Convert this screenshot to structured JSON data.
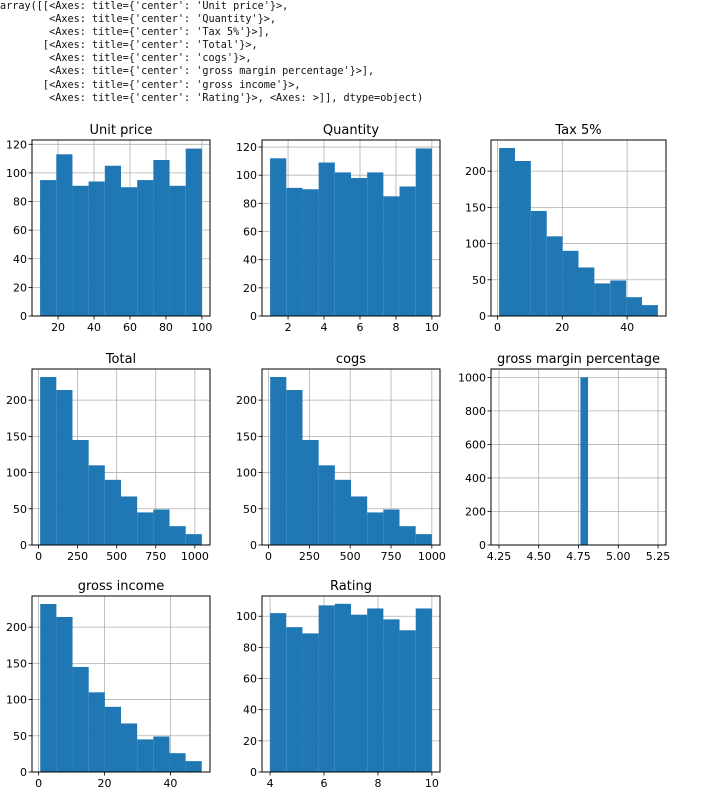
{
  "output_lines": [
    "array([[<Axes: title={'center': 'Unit price'}>,",
    "        <Axes: title={'center': 'Quantity'}>,",
    "        <Axes: title={'center': 'Tax 5%'}>],",
    "       [<Axes: title={'center': 'Total'}>,",
    "        <Axes: title={'center': 'cogs'}>,",
    "        <Axes: title={'center': 'gross margin percentage'}>],",
    "       [<Axes: title={'center': 'gross income'}>,",
    "        <Axes: title={'center': 'Rating'}>, <Axes: >]], dtype=object)"
  ],
  "colors": {
    "bar": "#1f77b4",
    "grid": "#b0b0b0",
    "axis": "#000000"
  },
  "chart_data": [
    {
      "type": "bar",
      "title": "Unit price",
      "grid": true,
      "bin_edges": [
        10,
        19,
        28,
        37,
        46,
        55,
        64,
        73,
        82,
        91,
        100
      ],
      "values": [
        95,
        113,
        91,
        94,
        105,
        90,
        95,
        109,
        91,
        117
      ],
      "xlim": [
        5.5,
        104.5
      ],
      "ylim": [
        0,
        123
      ],
      "xticks": [
        20,
        40,
        60,
        80,
        100
      ],
      "yticks": [
        0,
        20,
        40,
        60,
        80,
        100,
        120
      ]
    },
    {
      "type": "bar",
      "title": "Quantity",
      "grid": true,
      "bin_edges": [
        1,
        1.9,
        2.8,
        3.7,
        4.6,
        5.5,
        6.4,
        7.3,
        8.2,
        9.1,
        10
      ],
      "values": [
        112,
        91,
        90,
        109,
        102,
        98,
        102,
        85,
        92,
        119
      ],
      "xlim": [
        0.55,
        10.45
      ],
      "ylim": [
        0,
        125
      ],
      "xticks": [
        2,
        4,
        6,
        8,
        10
      ],
      "yticks": [
        0,
        20,
        40,
        60,
        80,
        100,
        120
      ]
    },
    {
      "type": "bar",
      "title": "Tax 5%",
      "grid": true,
      "bin_edges": [
        0.5,
        5.4,
        10.3,
        15.2,
        20.1,
        25,
        29.9,
        34.8,
        39.7,
        44.6,
        49.5
      ],
      "values": [
        232,
        214,
        145,
        110,
        90,
        67,
        45,
        49,
        26,
        15
      ],
      "xlim": [
        -2,
        52
      ],
      "ylim": [
        0,
        243
      ],
      "xticks": [
        0,
        20,
        40
      ],
      "yticks": [
        0,
        50,
        100,
        150,
        200
      ]
    },
    {
      "type": "bar",
      "title": "Total",
      "grid": true,
      "bin_edges": [
        10,
        113.5,
        217,
        320.5,
        424,
        527.5,
        631,
        734.5,
        838,
        941.5,
        1045
      ],
      "values": [
        232,
        214,
        145,
        110,
        90,
        67,
        45,
        49,
        26,
        15
      ],
      "xlim": [
        -42,
        1097
      ],
      "ylim": [
        0,
        243
      ],
      "xticks": [
        0,
        250,
        500,
        750,
        1000
      ],
      "yticks": [
        0,
        50,
        100,
        150,
        200
      ]
    },
    {
      "type": "bar",
      "title": "cogs",
      "grid": true,
      "bin_edges": [
        10,
        109,
        208,
        307,
        406,
        505,
        604,
        703,
        802,
        901,
        1000
      ],
      "values": [
        232,
        214,
        145,
        110,
        90,
        67,
        45,
        49,
        26,
        15
      ],
      "xlim": [
        -40,
        1050
      ],
      "ylim": [
        0,
        243
      ],
      "xticks": [
        0,
        250,
        500,
        750,
        1000
      ],
      "yticks": [
        0,
        50,
        100,
        150,
        200
      ]
    },
    {
      "type": "bar",
      "title": "gross margin percentage",
      "grid": true,
      "bin_edges": [
        4.762,
        4.81,
        4.858
      ],
      "values": [
        1000,
        0
      ],
      "xlim": [
        4.2,
        5.3
      ],
      "ylim": [
        0,
        1050
      ],
      "xticks": [
        "4.25",
        "4.50",
        "4.75",
        "5.00",
        "5.25"
      ],
      "yticks": [
        0,
        200,
        400,
        600,
        800,
        1000
      ]
    },
    {
      "type": "bar",
      "title": "gross income",
      "grid": true,
      "bin_edges": [
        0.5,
        5.4,
        10.3,
        15.2,
        20.1,
        25,
        29.9,
        34.8,
        39.7,
        44.6,
        49.5
      ],
      "values": [
        232,
        214,
        145,
        110,
        90,
        67,
        45,
        49,
        26,
        15
      ],
      "xlim": [
        -2,
        52
      ],
      "ylim": [
        0,
        243
      ],
      "xticks": [
        0,
        20,
        40
      ],
      "yticks": [
        0,
        50,
        100,
        150,
        200
      ]
    },
    {
      "type": "bar",
      "title": "Rating",
      "grid": true,
      "bin_edges": [
        4,
        4.6,
        5.2,
        5.8,
        6.4,
        7,
        7.6,
        8.2,
        8.8,
        9.4,
        10
      ],
      "values": [
        102,
        93,
        89,
        107,
        108,
        101,
        105,
        98,
        91,
        105
      ],
      "xlim": [
        3.7,
        10.3
      ],
      "ylim": [
        0,
        113
      ],
      "xticks": [
        4,
        6,
        8,
        10
      ],
      "yticks": [
        0,
        20,
        40,
        60,
        80,
        100
      ]
    }
  ]
}
